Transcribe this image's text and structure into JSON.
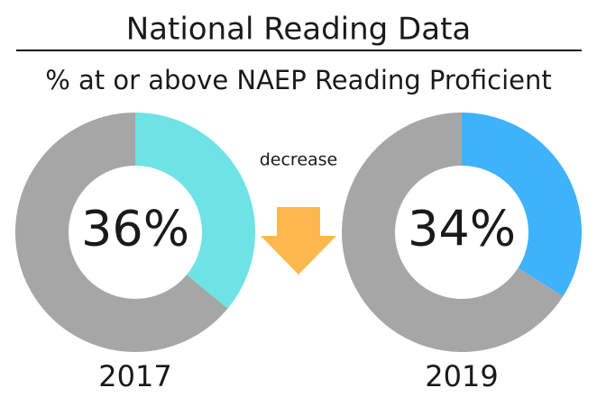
{
  "title": "National Reading Data",
  "subtitle": "% at or above NAEP Reading Proficient",
  "annotation": "decrease",
  "chart_data": [
    {
      "type": "donut",
      "label": "2017",
      "values": [
        36,
        64
      ],
      "value_labels": [
        "36%",
        null
      ],
      "colors": [
        "#6ee3e6",
        "#a6a6a6"
      ]
    },
    {
      "type": "donut",
      "label": "2019",
      "values": [
        34,
        66
      ],
      "value_labels": [
        "34%",
        null
      ],
      "colors": [
        "#3eb2fb",
        "#a6a6a6"
      ]
    }
  ]
}
